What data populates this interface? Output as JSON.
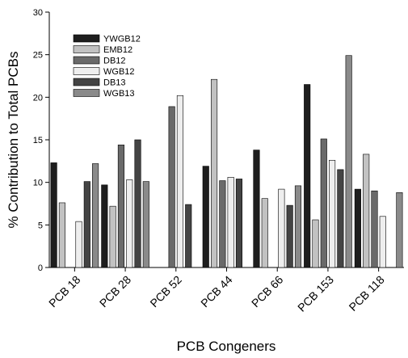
{
  "chart_data": {
    "type": "bar",
    "xlabel": "PCB Congeners",
    "ylabel": "% Contribution to Total PCBs",
    "ylim": [
      0,
      30
    ],
    "yticks": [
      0,
      5,
      10,
      15,
      20,
      25,
      30
    ],
    "grid": false,
    "legend_position": "top-left",
    "categories": [
      "PCB 18",
      "PCB 28",
      "PCB 52",
      "PCB 44",
      "PCB 66",
      "PCB 153",
      "PCB 118"
    ],
    "series": [
      {
        "name": "YWGB12",
        "color": "#1e1e1e",
        "values": [
          12.3,
          9.7,
          null,
          11.9,
          13.8,
          21.5,
          9.2
        ]
      },
      {
        "name": "EMB12",
        "color": "#c2c2c2",
        "values": [
          7.6,
          7.2,
          null,
          22.1,
          8.1,
          5.6,
          13.3
        ]
      },
      {
        "name": "DB12",
        "color": "#6a6a6a",
        "values": [
          null,
          14.4,
          18.9,
          10.2,
          null,
          15.1,
          9.0
        ]
      },
      {
        "name": "WGB12",
        "color": "#eeeeee",
        "values": [
          5.4,
          10.3,
          20.2,
          10.6,
          9.2,
          12.6,
          6.0
        ]
      },
      {
        "name": "DB13",
        "color": "#444444",
        "values": [
          10.1,
          15.0,
          7.4,
          10.4,
          7.3,
          11.5,
          null
        ]
      },
      {
        "name": "WGB13",
        "color": "#8a8a8a",
        "values": [
          12.2,
          10.1,
          null,
          null,
          9.6,
          24.9,
          8.8
        ]
      }
    ]
  }
}
